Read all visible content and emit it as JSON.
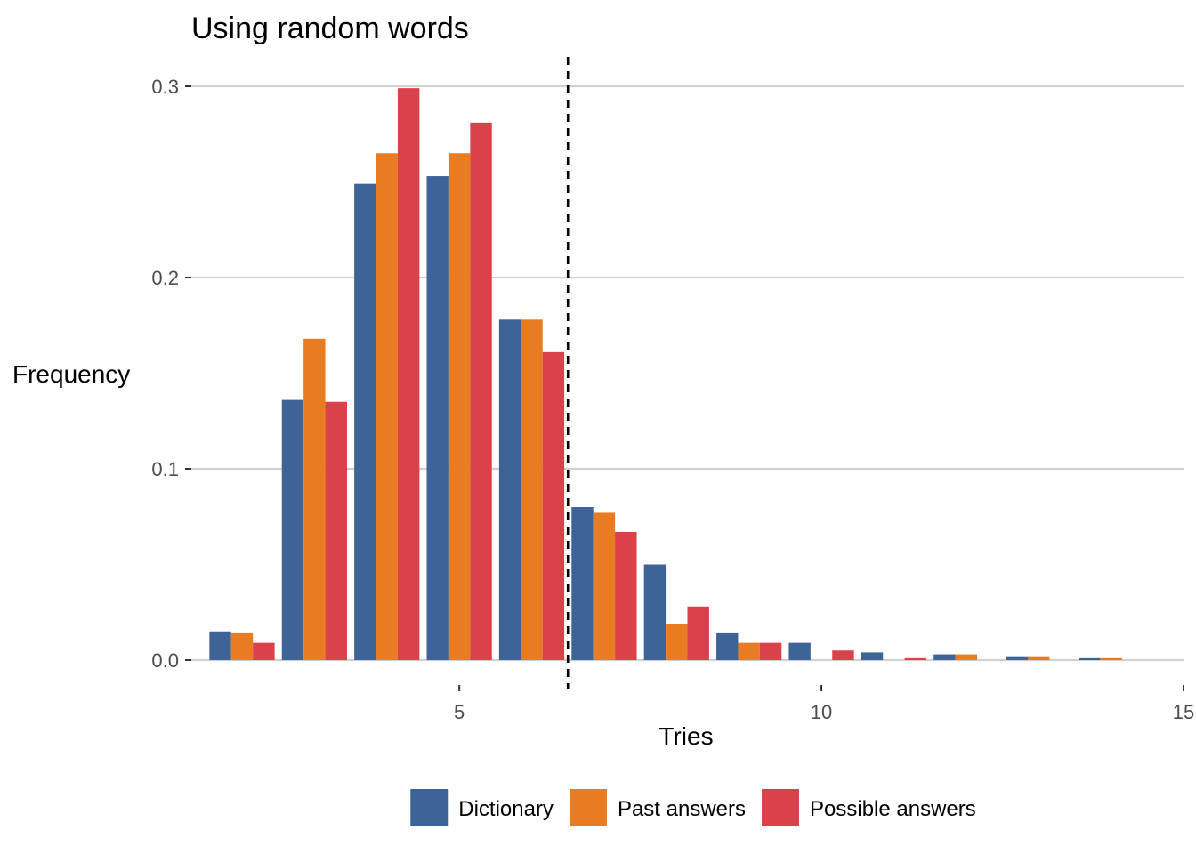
{
  "chart_data": {
    "type": "bar",
    "title": "Using random words",
    "xlabel": "Tries",
    "ylabel": "Frequency",
    "xlim": [
      1.3,
      15
    ],
    "ylim": [
      0,
      0.315
    ],
    "x_ticks": [
      5,
      10,
      15
    ],
    "y_ticks": [
      0.0,
      0.1,
      0.2,
      0.3
    ],
    "x_tick_labels": [
      "5",
      "10",
      "15"
    ],
    "y_tick_labels": [
      "0.0",
      "0.1",
      "0.2",
      "0.3"
    ],
    "grid": "horizontal major",
    "legend_position": "bottom",
    "reference_line": {
      "x": 6.5,
      "style": "dashed",
      "color": "#000000"
    },
    "x": [
      2,
      3,
      4,
      5,
      6,
      7,
      8,
      9,
      10,
      11,
      12,
      13,
      14
    ],
    "series": [
      {
        "name": "Dictionary",
        "color": "#3e6497",
        "values": [
          0.015,
          0.136,
          0.249,
          0.253,
          0.178,
          0.08,
          0.05,
          0.014,
          0.009,
          0.004,
          0.003,
          0.002,
          0.001
        ]
      },
      {
        "name": "Past answers",
        "color": "#e97b22",
        "values": [
          0.014,
          0.168,
          0.265,
          0.265,
          0.178,
          0.077,
          0.019,
          0.009,
          0.0,
          0.0,
          0.003,
          0.002,
          0.001
        ]
      },
      {
        "name": "Possible answers",
        "color": "#d9414b",
        "values": [
          0.009,
          0.135,
          0.299,
          0.281,
          0.161,
          0.067,
          0.028,
          0.009,
          0.005,
          0.001,
          0.0,
          0.0,
          0.0
        ]
      }
    ]
  }
}
